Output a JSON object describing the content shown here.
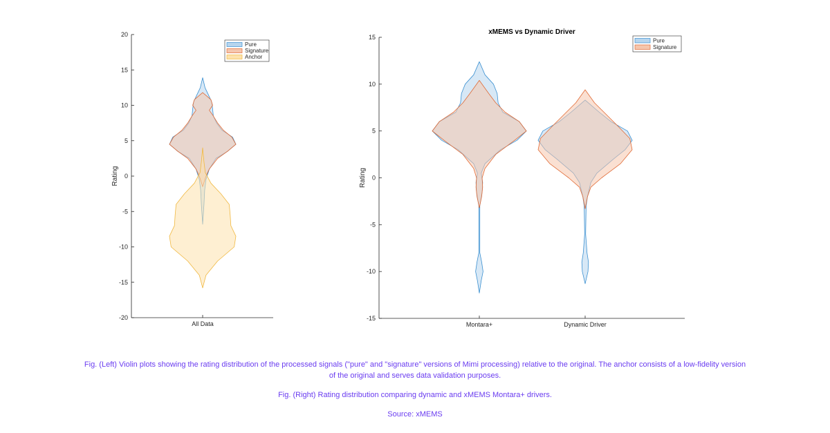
{
  "colors": {
    "pure_fill": "#b7d5ee",
    "pure_line": "#3a8fd0",
    "signature_fill": "#f5c6ad",
    "signature_line": "#e06a35",
    "anchor_fill": "#fde2ad",
    "anchor_line": "#f0b840",
    "caption": "#6a3cf0"
  },
  "chart_data": [
    {
      "type": "violin",
      "title": "",
      "ylabel": "Rating",
      "ylim": [
        -20,
        20
      ],
      "yticks": [
        -20,
        -15,
        -10,
        -5,
        0,
        5,
        10,
        15,
        20
      ],
      "categories": [
        "All Data"
      ],
      "legend": {
        "position": "top-right",
        "entries": [
          "Pure",
          "Signature",
          "Anchor"
        ]
      },
      "series": [
        {
          "name": "Pure",
          "color": "pure",
          "groups": [
            {
              "category": "All Data",
              "range": [
                -6.8,
                13.9
              ],
              "profile": [
                [
                  -6.8,
                  0
                ],
                [
                  -4,
                  0.04
                ],
                [
                  -2,
                  0.06
                ],
                [
                  -0.5,
                  0.1
                ],
                [
                  1,
                  0.2
                ],
                [
                  2.5,
                  0.4
                ],
                [
                  3.5,
                  0.75
                ],
                [
                  4.5,
                  1.0
                ],
                [
                  5.5,
                  0.9
                ],
                [
                  6.5,
                  0.58
                ],
                [
                  7.5,
                  0.42
                ],
                [
                  8.5,
                  0.32
                ],
                [
                  9.5,
                  0.3
                ],
                [
                  10.5,
                  0.27
                ],
                [
                  11.5,
                  0.17
                ],
                [
                  12.5,
                  0.07
                ],
                [
                  13.9,
                  0
                ]
              ]
            }
          ]
        },
        {
          "name": "Signature",
          "color": "signature",
          "groups": [
            {
              "category": "All Data",
              "range": [
                -1.5,
                11.8
              ],
              "profile": [
                [
                  -1.5,
                  0
                ],
                [
                  0,
                  0.1
                ],
                [
                  1,
                  0.2
                ],
                [
                  2.5,
                  0.45
                ],
                [
                  3.5,
                  0.75
                ],
                [
                  4.5,
                  1.0
                ],
                [
                  5.5,
                  0.88
                ],
                [
                  6.5,
                  0.62
                ],
                [
                  7.5,
                  0.45
                ],
                [
                  8.5,
                  0.32
                ],
                [
                  9.3,
                  0.2
                ],
                [
                  10,
                  0.3
                ],
                [
                  10.8,
                  0.25
                ],
                [
                  11.8,
                  0
                ]
              ]
            }
          ]
        },
        {
          "name": "Anchor",
          "color": "anchor",
          "groups": [
            {
              "category": "All Data",
              "range": [
                -15.8,
                4.0
              ],
              "profile": [
                [
                  -15.8,
                  0
                ],
                [
                  -14,
                  0.1
                ],
                [
                  -12,
                  0.45
                ],
                [
                  -10,
                  0.95
                ],
                [
                  -8.5,
                  1.0
                ],
                [
                  -7,
                  0.85
                ],
                [
                  -5.5,
                  0.83
                ],
                [
                  -4,
                  0.8
                ],
                [
                  -2.5,
                  0.55
                ],
                [
                  -1,
                  0.25
                ],
                [
                  0.5,
                  0.08
                ],
                [
                  2,
                  0.04
                ],
                [
                  4,
                  0
                ]
              ]
            }
          ]
        }
      ]
    },
    {
      "type": "violin",
      "title": "xMEMS vs Dynamic Driver",
      "ylabel": "Rating",
      "ylim": [
        -15,
        15
      ],
      "yticks": [
        -15,
        -10,
        -5,
        0,
        5,
        10,
        15
      ],
      "categories": [
        "Montara+",
        "Dynamic Driver"
      ],
      "legend": {
        "position": "top-right",
        "entries": [
          "Pure",
          "Signature"
        ]
      },
      "series": [
        {
          "name": "Pure",
          "color": "pure",
          "groups": [
            {
              "category": "Montara+",
              "range": [
                -12.3,
                12.4
              ],
              "profile": [
                [
                  -12.3,
                  0
                ],
                [
                  -11,
                  0.04
                ],
                [
                  -10,
                  0.08
                ],
                [
                  -9,
                  0.05
                ],
                [
                  -8,
                  0.01
                ],
                [
                  -6,
                  0.01
                ],
                [
                  -3,
                  0.01
                ],
                [
                  -1.5,
                  0.06
                ],
                [
                  -0.5,
                  0.07
                ],
                [
                  0.5,
                  0.04
                ],
                [
                  1.5,
                  0.12
                ],
                [
                  3,
                  0.45
                ],
                [
                  4,
                  0.8
                ],
                [
                  5,
                  1.0
                ],
                [
                  6,
                  0.85
                ],
                [
                  7,
                  0.5
                ],
                [
                  8,
                  0.4
                ],
                [
                  9,
                  0.38
                ],
                [
                  10,
                  0.3
                ],
                [
                  11,
                  0.12
                ],
                [
                  12.4,
                  0
                ]
              ]
            },
            {
              "category": "Dynamic Driver",
              "range": [
                -11.3,
                8.3
              ],
              "profile": [
                [
                  -11.3,
                  0
                ],
                [
                  -10,
                  0.06
                ],
                [
                  -9,
                  0.07
                ],
                [
                  -8,
                  0.04
                ],
                [
                  -6,
                  0.01
                ],
                [
                  -3,
                  0.02
                ],
                [
                  -2,
                  0.05
                ],
                [
                  -0.5,
                  0.12
                ],
                [
                  0.5,
                  0.25
                ],
                [
                  2,
                  0.6
                ],
                [
                  3,
                  0.85
                ],
                [
                  4,
                  1.0
                ],
                [
                  5,
                  0.9
                ],
                [
                  6,
                  0.55
                ],
                [
                  7,
                  0.3
                ],
                [
                  8.3,
                  0
                ]
              ]
            }
          ]
        },
        {
          "name": "Signature",
          "color": "signature",
          "groups": [
            {
              "category": "Montara+",
              "range": [
                -3.2,
                10.4
              ],
              "profile": [
                [
                  -3.2,
                  0
                ],
                [
                  -2,
                  0.05
                ],
                [
                  -1,
                  0.07
                ],
                [
                  0,
                  0.06
                ],
                [
                  1,
                  0.12
                ],
                [
                  2.5,
                  0.35
                ],
                [
                  4,
                  0.75
                ],
                [
                  5,
                  1.0
                ],
                [
                  6,
                  0.85
                ],
                [
                  7,
                  0.55
                ],
                [
                  8,
                  0.35
                ],
                [
                  9,
                  0.2
                ],
                [
                  10.4,
                  0
                ]
              ]
            },
            {
              "category": "Dynamic Driver",
              "range": [
                -3.3,
                9.4
              ],
              "profile": [
                [
                  -3.3,
                  0
                ],
                [
                  -2,
                  0.05
                ],
                [
                  -1,
                  0.12
                ],
                [
                  0,
                  0.35
                ],
                [
                  1.5,
                  0.75
                ],
                [
                  3,
                  1.0
                ],
                [
                  4.2,
                  0.95
                ],
                [
                  5.5,
                  0.7
                ],
                [
                  7,
                  0.4
                ],
                [
                  8,
                  0.2
                ],
                [
                  9.4,
                  0
                ]
              ]
            }
          ]
        }
      ]
    }
  ],
  "captions": {
    "line1": "Fig. (Left) Violin plots showing the rating distribution of the processed signals (\"pure\" and \"signature\" versions of Mimi processing) relative to the original. The anchor consists of a low-fidelity version of the original and serves data validation purposes.",
    "line2": "Fig. (Right) Rating distribution comparing dynamic and xMEMS Montara+ drivers.",
    "line3": "Source: xMEMS"
  }
}
